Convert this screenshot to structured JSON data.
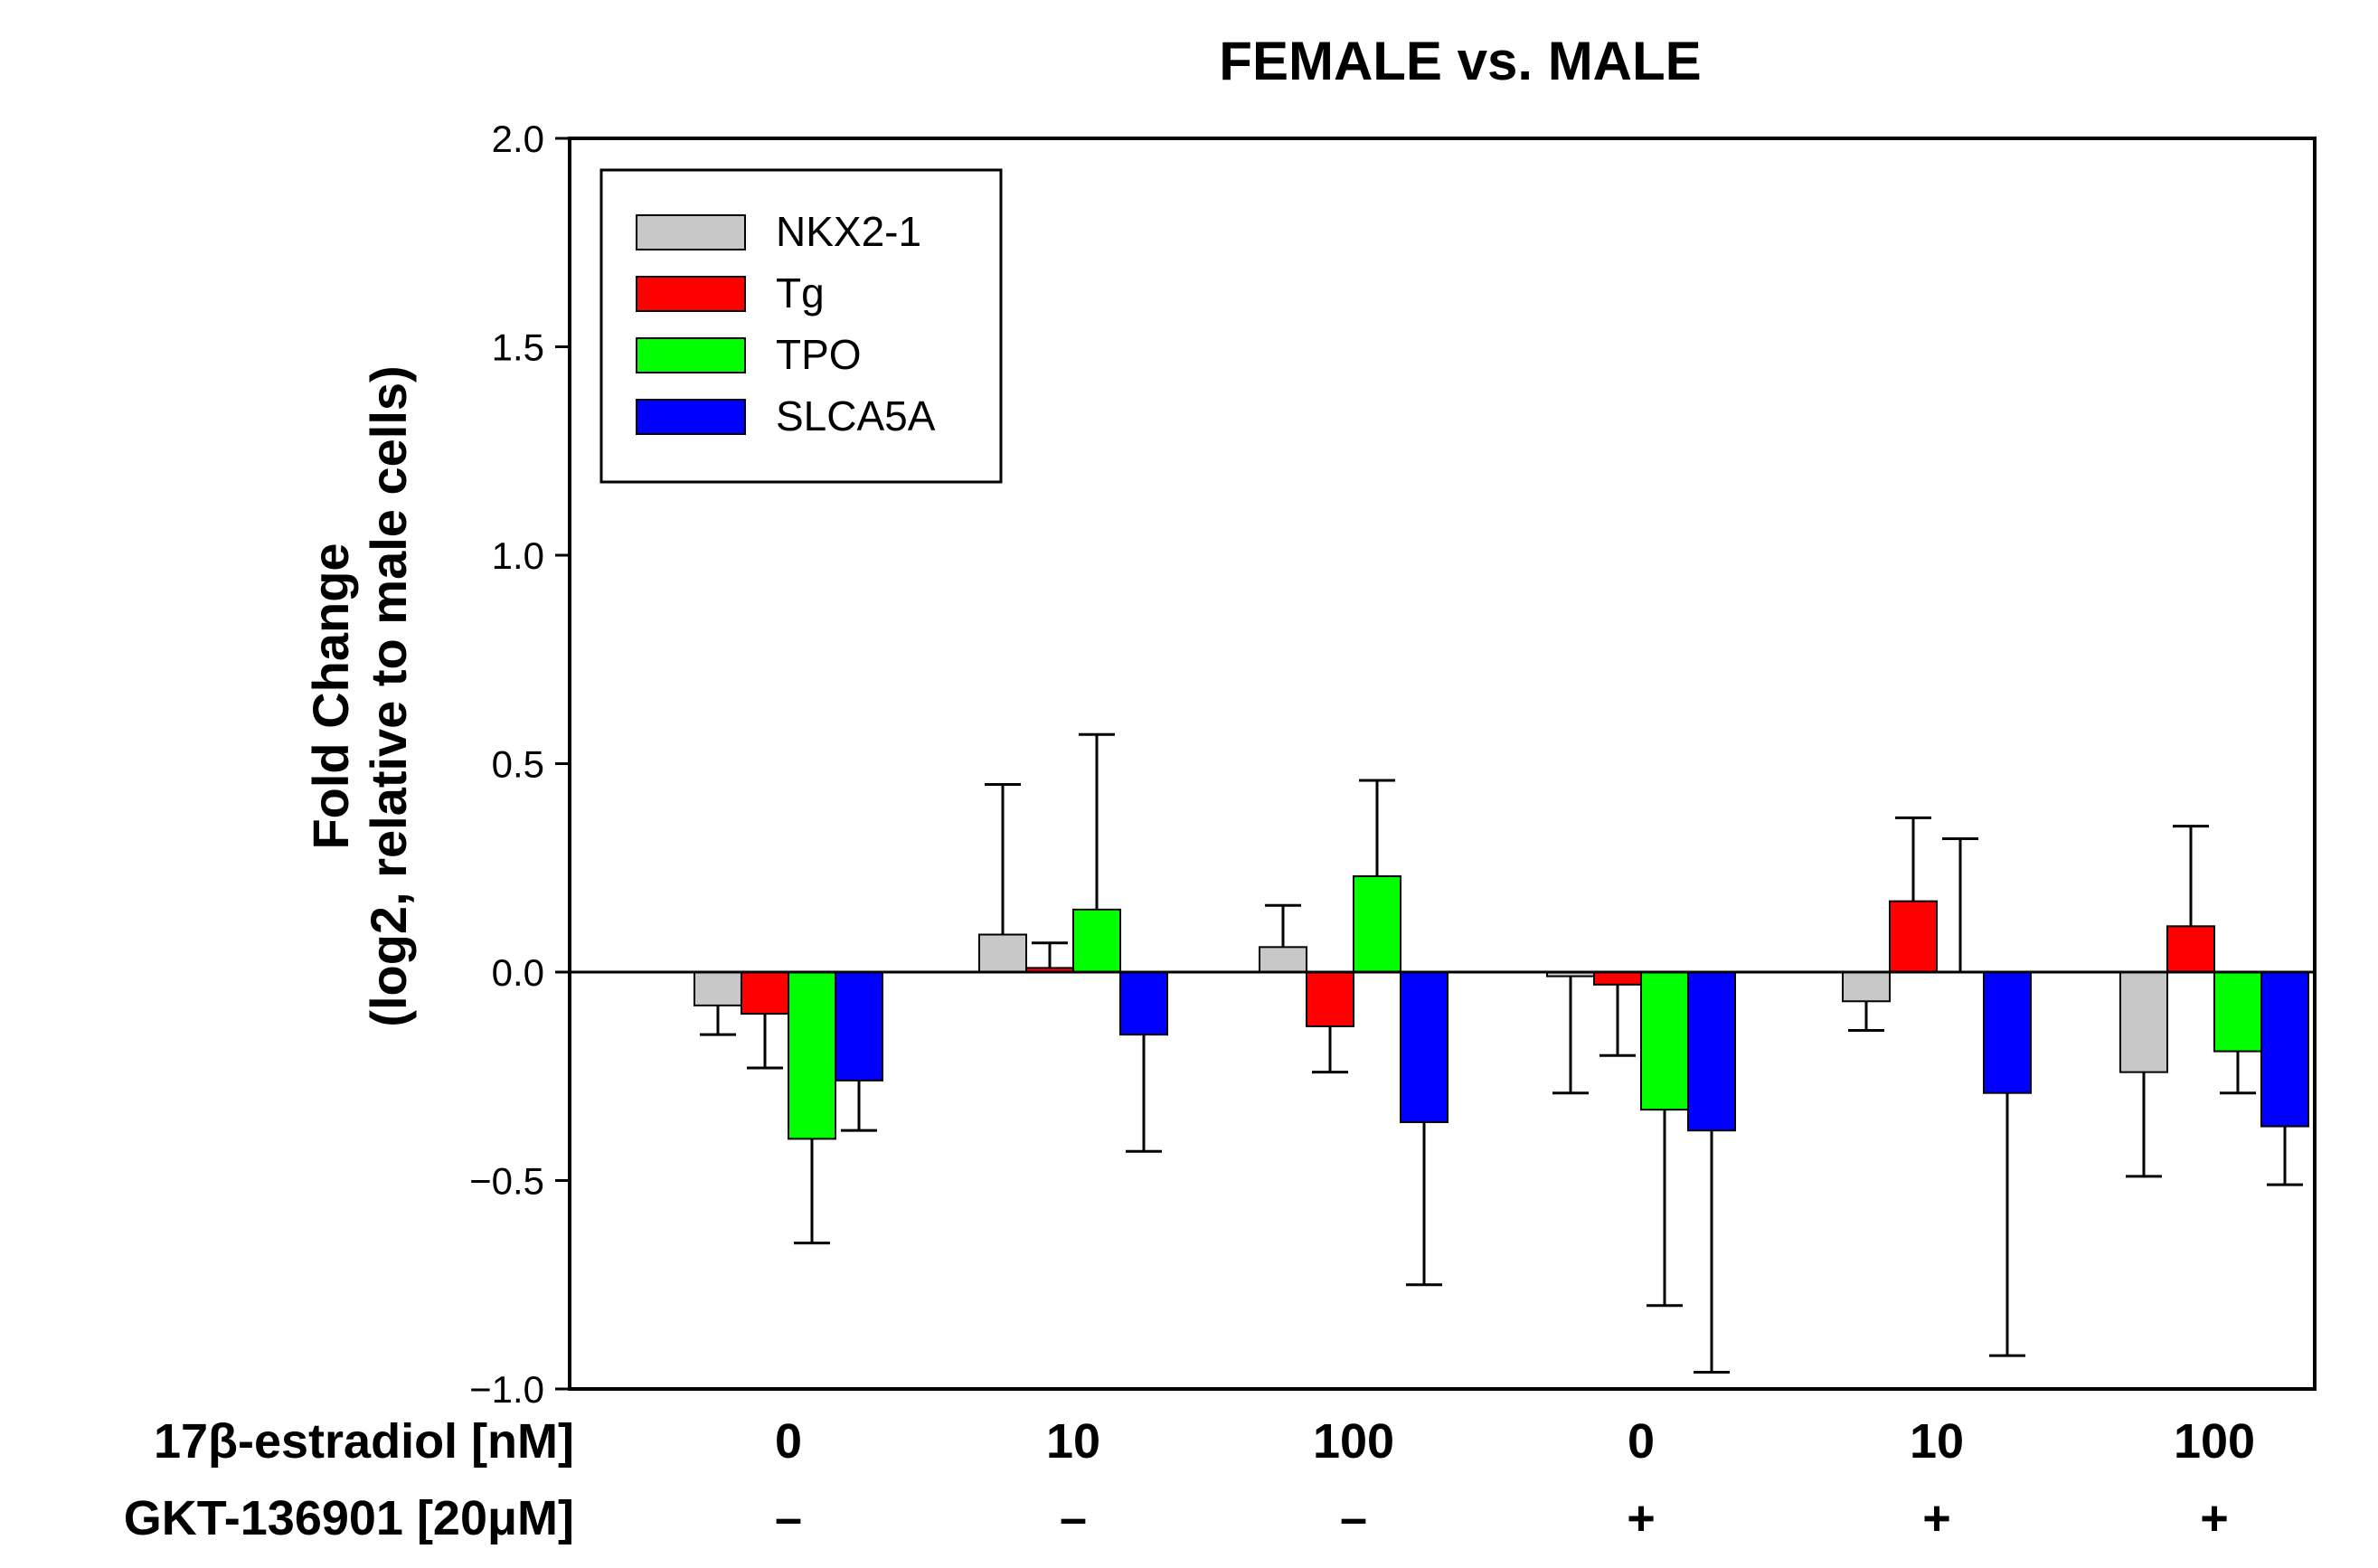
{
  "chart_data": {
    "type": "bar",
    "title": "FEMALE vs. MALE",
    "ylabel_line1": "Fold Change",
    "ylabel_line2": "(log2, relative to male cells)",
    "xlabel": "",
    "ylim": [
      -1.0,
      2.0
    ],
    "yticks": [
      -1.0,
      -0.5,
      0.0,
      0.5,
      1.0,
      1.5,
      2.0
    ],
    "ytick_labels": [
      "−1.0",
      "−0.5",
      "0.0",
      "0.5",
      "1.0",
      "1.5",
      "2.0"
    ],
    "row_labels": [
      "17β-estradiol [nM]",
      "GKT-136901 [20μM]"
    ],
    "categories": [
      {
        "estradiol": "0",
        "gkt": "–"
      },
      {
        "estradiol": "10",
        "gkt": "–"
      },
      {
        "estradiol": "100",
        "gkt": "–"
      },
      {
        "estradiol": "0",
        "gkt": "+"
      },
      {
        "estradiol": "10",
        "gkt": "+"
      },
      {
        "estradiol": "100",
        "gkt": "+"
      }
    ],
    "series": [
      {
        "name": "NKX2-1",
        "color": "#c8c8c8",
        "values": [
          -0.08,
          0.09,
          0.06,
          -0.01,
          -0.07,
          -0.24
        ],
        "errors": [
          0.07,
          0.36,
          0.1,
          0.28,
          0.07,
          0.25
        ]
      },
      {
        "name": "Tg",
        "color": "#ff0000",
        "values": [
          -0.1,
          0.01,
          -0.13,
          -0.03,
          0.17,
          0.11
        ],
        "errors": [
          0.13,
          0.06,
          0.11,
          0.17,
          0.2,
          0.24
        ]
      },
      {
        "name": "TPO",
        "color": "#00ff00",
        "values": [
          -0.4,
          0.15,
          0.23,
          -0.33,
          0.0,
          -0.19
        ],
        "errors": [
          0.25,
          0.42,
          0.23,
          0.47,
          0.32,
          0.1
        ]
      },
      {
        "name": "SLCA5A",
        "color": "#0000ff",
        "values": [
          -0.26,
          -0.15,
          -0.36,
          -0.38,
          -0.29,
          -0.37
        ],
        "errors": [
          0.12,
          0.28,
          0.39,
          0.58,
          0.63,
          0.14
        ]
      }
    ],
    "legend_position": "top-left",
    "grid": false
  }
}
